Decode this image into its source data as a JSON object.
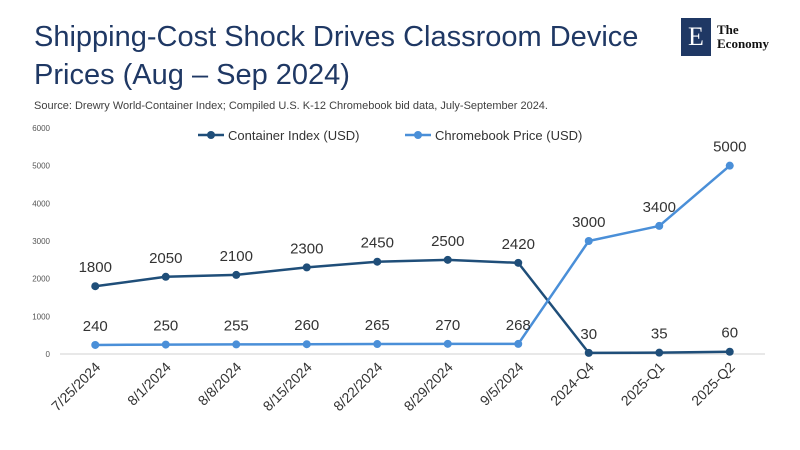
{
  "title": "Shipping-Cost Shock Drives Classroom Device Prices (Aug – Sep 2024)",
  "source": "Source:  Drewry World-Container Index; Compiled U.S. K-12 Chromebook bid data, July-September 2024.",
  "logo": {
    "mark": "E",
    "line1": "The",
    "line2": "Economy"
  },
  "colors": {
    "container": "#1f4e79",
    "chromebook": "#4a8fd8",
    "title": "#1f3864"
  },
  "chart_data": {
    "type": "line",
    "categories": [
      "7/25/2024",
      "8/1/2024",
      "8/8/2024",
      "8/15/2024",
      "8/22/2024",
      "8/29/2024",
      "9/5/2024",
      "2024-Q4",
      "2025-Q1",
      "2025-Q2"
    ],
    "series": [
      {
        "name": "Container Index (USD)",
        "values": [
          1800,
          2050,
          2100,
          2300,
          2450,
          2500,
          2420,
          30,
          35,
          60
        ],
        "labels": [
          "1800",
          "2050",
          "2100",
          "2300",
          "2450",
          "2500",
          "2420",
          "30",
          "35",
          "60"
        ]
      },
      {
        "name": "Chromebook Price (USD)",
        "values": [
          240,
          250,
          255,
          260,
          265,
          270,
          268,
          3000,
          3400,
          5000
        ],
        "labels": [
          "240",
          "250",
          "255",
          "260",
          "265",
          "270",
          "268",
          "3000",
          "3400",
          "5000"
        ]
      }
    ],
    "yticks": [
      "0",
      "1000",
      "2000",
      "3000",
      "4000",
      "5000",
      "6000"
    ],
    "ylim": [
      0,
      6000
    ],
    "grid": false,
    "legend": "top-center"
  }
}
